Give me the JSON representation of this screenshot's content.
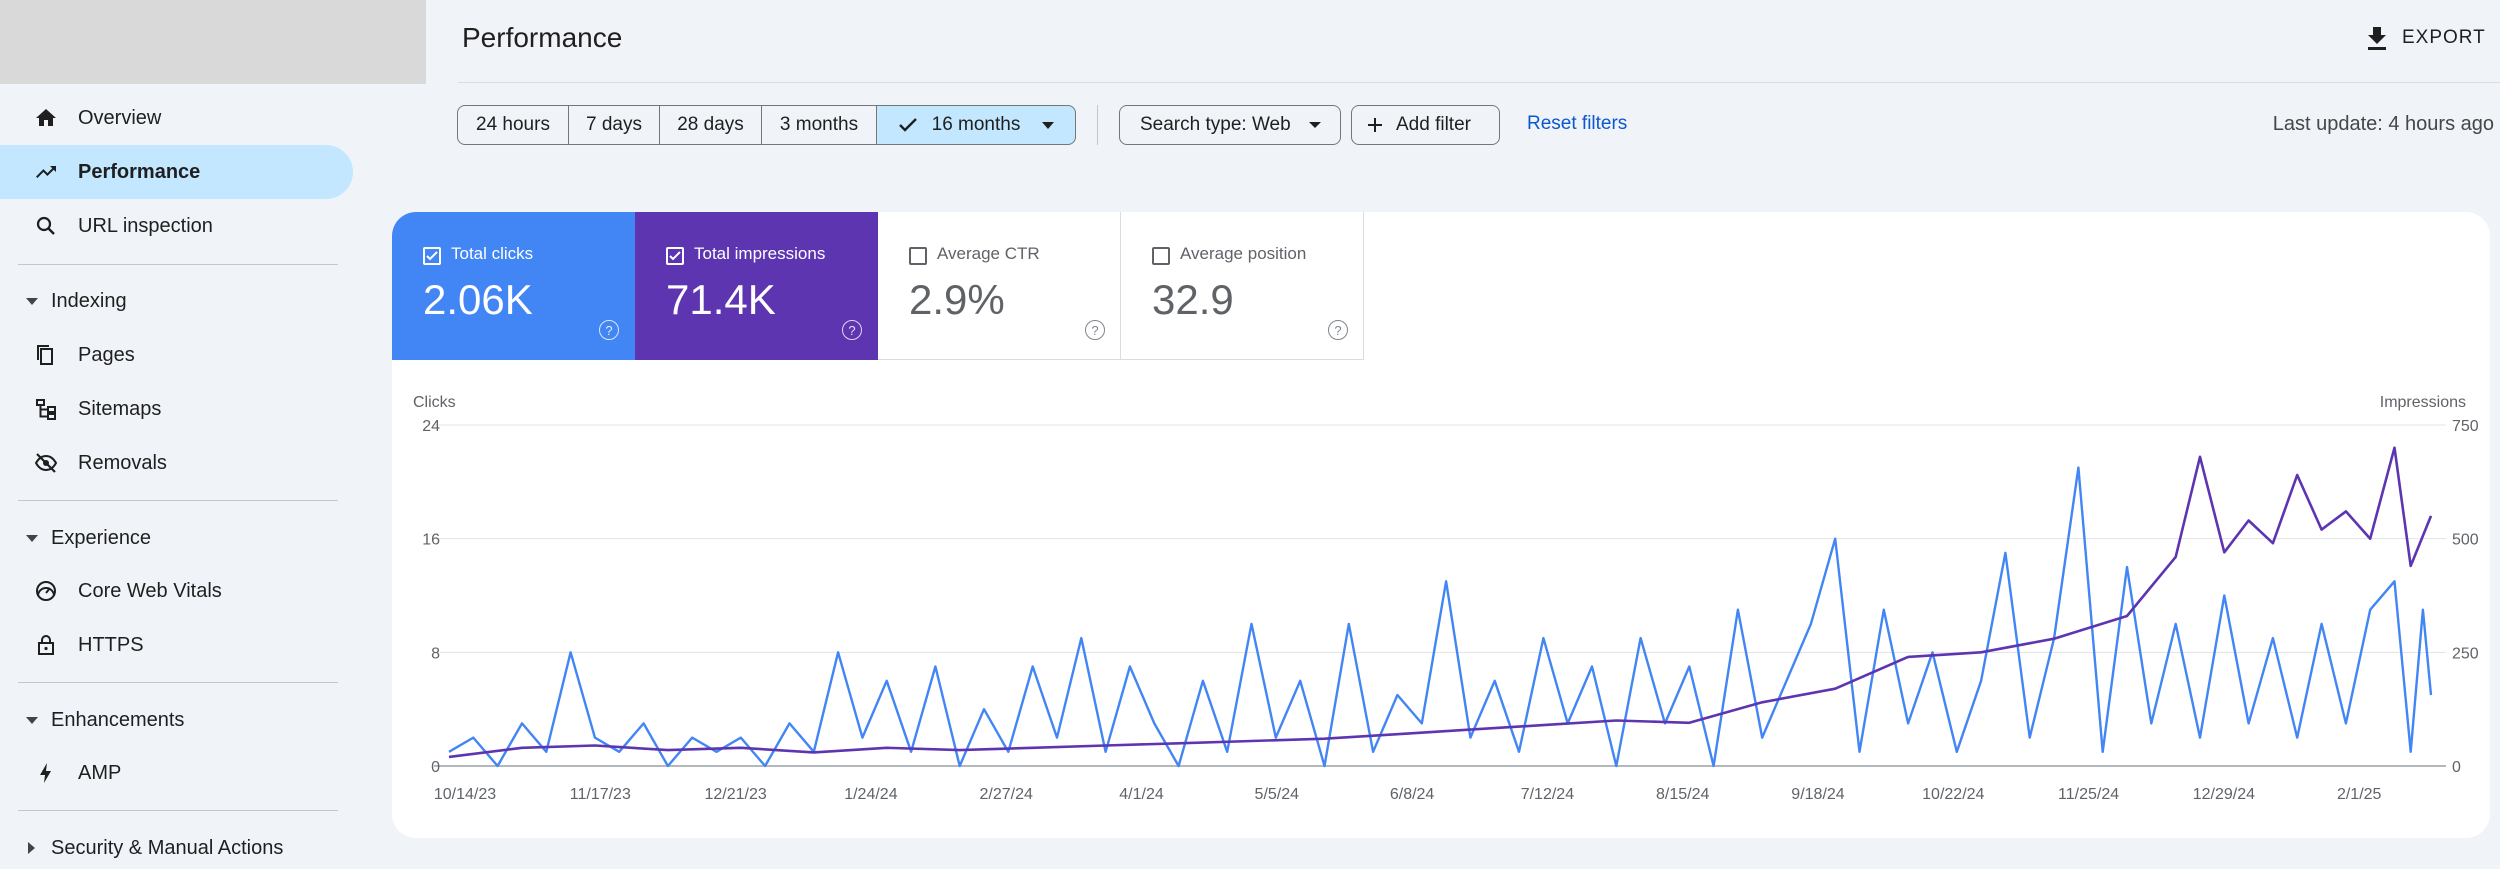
{
  "sidebar": {
    "items": [
      {
        "label": "Overview",
        "icon": "home-icon"
      },
      {
        "label": "Performance",
        "icon": "trending-up-icon",
        "active": true
      },
      {
        "label": "URL inspection",
        "icon": "search-icon"
      }
    ],
    "sections": [
      {
        "label": "Indexing",
        "items": [
          {
            "label": "Pages",
            "icon": "pages-icon"
          },
          {
            "label": "Sitemaps",
            "icon": "sitemap-icon"
          },
          {
            "label": "Removals",
            "icon": "eye-off-icon"
          }
        ]
      },
      {
        "label": "Experience",
        "items": [
          {
            "label": "Core Web Vitals",
            "icon": "speed-gauge-icon"
          },
          {
            "label": "HTTPS",
            "icon": "lock-icon"
          }
        ]
      },
      {
        "label": "Enhancements",
        "items": [
          {
            "label": "AMP",
            "icon": "bolt-icon"
          }
        ]
      },
      {
        "label": "Security & Manual Actions",
        "collapsed": true
      }
    ]
  },
  "header": {
    "title": "Performance",
    "export_label": "EXPORT"
  },
  "filters": {
    "date_ranges": [
      "24 hours",
      "7 days",
      "28 days",
      "3 months",
      "16 months"
    ],
    "selected_range": "16 months",
    "search_type": "Search type: Web",
    "add_filter": "Add filter",
    "reset": "Reset filters",
    "last_update": "Last update: 4 hours ago"
  },
  "metrics": [
    {
      "label": "Total clicks",
      "value": "2.06K",
      "checked": true,
      "color": "#4285f4"
    },
    {
      "label": "Total impressions",
      "value": "71.4K",
      "checked": true,
      "color": "#5e35b1"
    },
    {
      "label": "Average CTR",
      "value": "2.9%",
      "checked": false
    },
    {
      "label": "Average position",
      "value": "32.9",
      "checked": false
    }
  ],
  "colors": {
    "accent": "#0b57d0",
    "active_nav": "#c2e7ff",
    "clicks": "#4285f4",
    "impressions": "#5e35b1"
  },
  "chart_data": {
    "type": "line",
    "ylabel_left": "Clicks",
    "ylabel_right": "Impressions",
    "yticks_left": [
      "0",
      "8",
      "16",
      "24"
    ],
    "yticks_right": [
      "0",
      "250",
      "500",
      "750"
    ],
    "ylim_left": [
      0,
      24
    ],
    "ylim_right": [
      0,
      750
    ],
    "x_ticks": [
      "10/14/23",
      "11/17/23",
      "12/21/23",
      "1/24/24",
      "2/27/24",
      "4/1/24",
      "5/5/24",
      "6/8/24",
      "7/12/24",
      "8/15/24",
      "9/18/24",
      "10/22/24",
      "11/25/24",
      "12/29/24",
      "2/1/25"
    ],
    "x_range": [
      "2023-10-14",
      "2025-02-14"
    ],
    "grid": true,
    "series": [
      {
        "name": "Clicks",
        "axis": "left",
        "points": [
          [
            "2023-10-14",
            1
          ],
          [
            "2023-10-20",
            2
          ],
          [
            "2023-10-26",
            0
          ],
          [
            "2023-11-01",
            3
          ],
          [
            "2023-11-07",
            1
          ],
          [
            "2023-11-13",
            8
          ],
          [
            "2023-11-19",
            2
          ],
          [
            "2023-11-25",
            1
          ],
          [
            "2023-12-01",
            3
          ],
          [
            "2023-12-07",
            0
          ],
          [
            "2023-12-13",
            2
          ],
          [
            "2023-12-19",
            1
          ],
          [
            "2023-12-25",
            2
          ],
          [
            "2023-12-31",
            0
          ],
          [
            "2024-01-06",
            3
          ],
          [
            "2024-01-12",
            1
          ],
          [
            "2024-01-18",
            8
          ],
          [
            "2024-01-24",
            2
          ],
          [
            "2024-01-30",
            6
          ],
          [
            "2024-02-05",
            1
          ],
          [
            "2024-02-11",
            7
          ],
          [
            "2024-02-17",
            0
          ],
          [
            "2024-02-23",
            4
          ],
          [
            "2024-02-29",
            1
          ],
          [
            "2024-03-06",
            7
          ],
          [
            "2024-03-12",
            2
          ],
          [
            "2024-03-18",
            9
          ],
          [
            "2024-03-24",
            1
          ],
          [
            "2024-03-30",
            7
          ],
          [
            "2024-04-05",
            3
          ],
          [
            "2024-04-11",
            0
          ],
          [
            "2024-04-17",
            6
          ],
          [
            "2024-04-23",
            1
          ],
          [
            "2024-04-29",
            10
          ],
          [
            "2024-05-05",
            2
          ],
          [
            "2024-05-11",
            6
          ],
          [
            "2024-05-17",
            0
          ],
          [
            "2024-05-23",
            10
          ],
          [
            "2024-05-29",
            1
          ],
          [
            "2024-06-04",
            5
          ],
          [
            "2024-06-10",
            3
          ],
          [
            "2024-06-16",
            13
          ],
          [
            "2024-06-22",
            2
          ],
          [
            "2024-06-28",
            6
          ],
          [
            "2024-07-04",
            1
          ],
          [
            "2024-07-10",
            9
          ],
          [
            "2024-07-16",
            3
          ],
          [
            "2024-07-22",
            7
          ],
          [
            "2024-07-28",
            0
          ],
          [
            "2024-08-03",
            9
          ],
          [
            "2024-08-09",
            3
          ],
          [
            "2024-08-15",
            7
          ],
          [
            "2024-08-21",
            0
          ],
          [
            "2024-08-27",
            11
          ],
          [
            "2024-09-02",
            2
          ],
          [
            "2024-09-08",
            6
          ],
          [
            "2024-09-14",
            10
          ],
          [
            "2024-09-20",
            16
          ],
          [
            "2024-09-26",
            1
          ],
          [
            "2024-10-02",
            11
          ],
          [
            "2024-10-08",
            3
          ],
          [
            "2024-10-14",
            8
          ],
          [
            "2024-10-20",
            1
          ],
          [
            "2024-10-26",
            6
          ],
          [
            "2024-11-01",
            15
          ],
          [
            "2024-11-07",
            2
          ],
          [
            "2024-11-13",
            9
          ],
          [
            "2024-11-19",
            21
          ],
          [
            "2024-11-25",
            1
          ],
          [
            "2024-12-01",
            14
          ],
          [
            "2024-12-07",
            3
          ],
          [
            "2024-12-13",
            10
          ],
          [
            "2024-12-19",
            2
          ],
          [
            "2024-12-25",
            12
          ],
          [
            "2024-12-31",
            3
          ],
          [
            "2025-01-06",
            9
          ],
          [
            "2025-01-12",
            2
          ],
          [
            "2025-01-18",
            10
          ],
          [
            "2025-01-24",
            3
          ],
          [
            "2025-01-30",
            11
          ],
          [
            "2025-02-05",
            13
          ],
          [
            "2025-02-09",
            1
          ],
          [
            "2025-02-12",
            11
          ],
          [
            "2025-02-14",
            5
          ]
        ]
      },
      {
        "name": "Impressions",
        "axis": "right",
        "points": [
          [
            "2023-10-14",
            20
          ],
          [
            "2023-11-01",
            40
          ],
          [
            "2023-11-19",
            45
          ],
          [
            "2023-12-07",
            35
          ],
          [
            "2023-12-25",
            40
          ],
          [
            "2024-01-12",
            30
          ],
          [
            "2024-01-30",
            40
          ],
          [
            "2024-02-17",
            35
          ],
          [
            "2024-03-06",
            40
          ],
          [
            "2024-03-24",
            45
          ],
          [
            "2024-04-11",
            50
          ],
          [
            "2024-04-29",
            55
          ],
          [
            "2024-05-17",
            60
          ],
          [
            "2024-06-04",
            70
          ],
          [
            "2024-06-22",
            80
          ],
          [
            "2024-07-10",
            90
          ],
          [
            "2024-07-28",
            100
          ],
          [
            "2024-08-15",
            95
          ],
          [
            "2024-09-02",
            140
          ],
          [
            "2024-09-20",
            170
          ],
          [
            "2024-10-08",
            240
          ],
          [
            "2024-10-26",
            250
          ],
          [
            "2024-11-13",
            280
          ],
          [
            "2024-12-01",
            330
          ],
          [
            "2024-12-13",
            460
          ],
          [
            "2024-12-19",
            680
          ],
          [
            "2024-12-25",
            470
          ],
          [
            "2024-12-31",
            540
          ],
          [
            "2025-01-06",
            490
          ],
          [
            "2025-01-12",
            640
          ],
          [
            "2025-01-18",
            520
          ],
          [
            "2025-01-24",
            560
          ],
          [
            "2025-01-30",
            500
          ],
          [
            "2025-02-05",
            700
          ],
          [
            "2025-02-09",
            440
          ],
          [
            "2025-02-14",
            550
          ]
        ]
      }
    ]
  }
}
